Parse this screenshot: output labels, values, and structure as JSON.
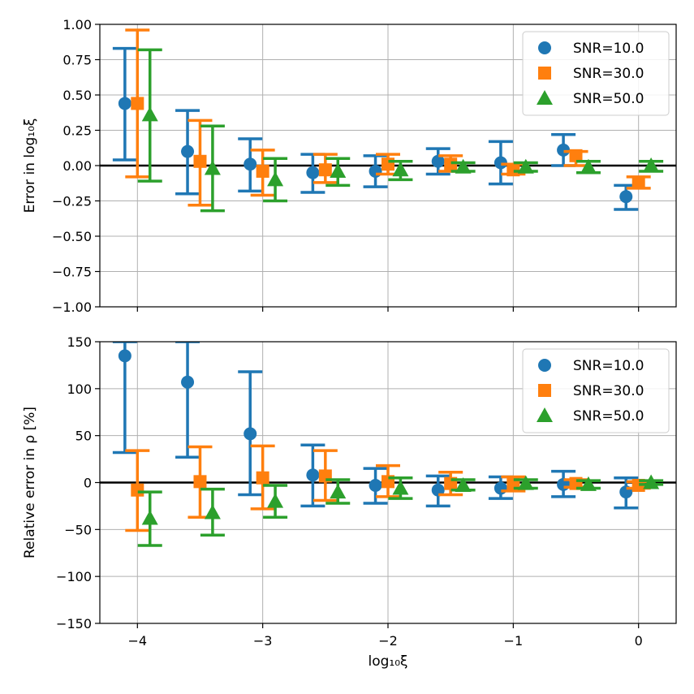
{
  "colors": {
    "SNR=10.0": "#1f77b4",
    "SNR=30.0": "#ff7f0e",
    "SNR=50.0": "#2ca02c",
    "grid": "#b0b0b0",
    "zero_line": "#000000"
  },
  "chart_data": [
    {
      "type": "scatter",
      "subtype": "errorbar",
      "title": "",
      "xlabel": "",
      "ylabel": "Error in log₁₀ξ",
      "xlim": [
        -4.3,
        0.3
      ],
      "ylim": [
        -1.0,
        1.0
      ],
      "x_ticks": [
        -4,
        -3,
        -2,
        -1,
        0
      ],
      "y_ticks": [
        -1.0,
        -0.75,
        -0.5,
        -0.25,
        0.0,
        0.25,
        0.5,
        0.75,
        1.0
      ],
      "y_tick_labels": [
        "−1.00",
        "−0.75",
        "−0.50",
        "−0.25",
        "0.00",
        "0.25",
        "0.50",
        "0.75",
        "1.00"
      ],
      "x_tick_labels_visible": false,
      "grid": true,
      "reference_line_y": 0,
      "legend": {
        "position": "top-right",
        "entries": [
          "SNR=10.0",
          "SNR=30.0",
          "SNR=50.0"
        ]
      },
      "series": [
        {
          "name": "SNR=10.0",
          "marker": "circle",
          "x": [
            -4.1,
            -3.6,
            -3.1,
            -2.6,
            -2.1,
            -1.6,
            -1.1,
            -0.6,
            -0.1
          ],
          "y": [
            0.44,
            0.1,
            0.01,
            -0.05,
            -0.04,
            0.03,
            0.02,
            0.11,
            -0.22
          ],
          "yerr_low": [
            0.04,
            -0.2,
            -0.18,
            -0.19,
            -0.15,
            -0.06,
            -0.13,
            0.0,
            -0.31
          ],
          "yerr_high": [
            0.83,
            0.39,
            0.19,
            0.08,
            0.07,
            0.12,
            0.17,
            0.22,
            -0.14
          ]
        },
        {
          "name": "SNR=30.0",
          "marker": "square",
          "x": [
            -4.0,
            -3.5,
            -3.0,
            -2.5,
            -2.0,
            -1.5,
            -1.0,
            -0.5,
            0.0
          ],
          "y": [
            0.44,
            0.03,
            -0.04,
            -0.03,
            0.01,
            0.01,
            -0.03,
            0.07,
            -0.12
          ],
          "yerr_low": [
            -0.08,
            -0.28,
            -0.21,
            -0.12,
            -0.06,
            -0.04,
            -0.06,
            0.0,
            -0.16
          ],
          "yerr_high": [
            0.96,
            0.32,
            0.11,
            0.08,
            0.08,
            0.07,
            0.01,
            0.1,
            -0.08
          ]
        },
        {
          "name": "SNR=50.0",
          "marker": "triangle",
          "x": [
            -3.9,
            -3.4,
            -2.9,
            -2.4,
            -1.9,
            -1.4,
            -0.9,
            -0.4,
            0.1
          ],
          "y": [
            0.36,
            -0.02,
            -0.1,
            -0.04,
            -0.03,
            -0.01,
            -0.01,
            -0.01,
            0.0
          ],
          "yerr_low": [
            -0.11,
            -0.32,
            -0.25,
            -0.14,
            -0.1,
            -0.04,
            -0.04,
            -0.05,
            -0.04
          ],
          "yerr_high": [
            0.82,
            0.28,
            0.05,
            0.05,
            0.03,
            0.02,
            0.02,
            0.03,
            0.03
          ]
        }
      ]
    },
    {
      "type": "scatter",
      "subtype": "errorbar",
      "title": "",
      "xlabel": "log₁₀ξ",
      "ylabel": "Relative error in ρ [%]",
      "xlim": [
        -4.3,
        0.3
      ],
      "ylim": [
        -150,
        150
      ],
      "x_ticks": [
        -4,
        -3,
        -2,
        -1,
        0
      ],
      "x_tick_labels": [
        "−4",
        "−3",
        "−2",
        "−1",
        "0"
      ],
      "y_ticks": [
        -150,
        -100,
        -50,
        0,
        50,
        100,
        150
      ],
      "y_tick_labels": [
        "−150",
        "−100",
        "−50",
        "0",
        "50",
        "100",
        "150"
      ],
      "grid": true,
      "reference_line_y": 0,
      "legend": {
        "position": "top-right",
        "entries": [
          "SNR=10.0",
          "SNR=30.0",
          "SNR=50.0"
        ]
      },
      "series": [
        {
          "name": "SNR=10.0",
          "marker": "circle",
          "x": [
            -4.1,
            -3.6,
            -3.1,
            -2.6,
            -2.1,
            -1.6,
            -1.1,
            -0.6,
            -0.1
          ],
          "y": [
            135,
            107,
            52,
            8,
            -3,
            -8,
            -6,
            -2,
            -10
          ],
          "yerr_low": [
            32,
            27,
            -13,
            -25,
            -22,
            -25,
            -17,
            -15,
            -27
          ],
          "yerr_high": [
            150,
            150,
            118,
            40,
            15,
            7,
            6,
            12,
            5
          ]
        },
        {
          "name": "SNR=30.0",
          "marker": "square",
          "x": [
            -4.0,
            -3.5,
            -3.0,
            -2.5,
            -2.0,
            -1.5,
            -1.0,
            -0.5,
            0.0
          ],
          "y": [
            -8,
            1,
            5,
            7,
            1,
            -1,
            -2,
            -1,
            -3
          ],
          "yerr_low": [
            -51,
            -37,
            -28,
            -19,
            -15,
            -13,
            -9,
            -5,
            -6
          ],
          "yerr_high": [
            34,
            38,
            39,
            34,
            18,
            11,
            6,
            3,
            1
          ]
        },
        {
          "name": "SNR=50.0",
          "marker": "triangle",
          "x": [
            -3.9,
            -3.4,
            -2.9,
            -2.4,
            -1.9,
            -1.4,
            -0.9,
            -0.4,
            0.1
          ],
          "y": [
            -38,
            -32,
            -20,
            -10,
            -6,
            -3,
            -1,
            -2,
            0
          ],
          "yerr_low": [
            -67,
            -56,
            -37,
            -22,
            -17,
            -8,
            -6,
            -6,
            -2
          ],
          "yerr_high": [
            -10,
            -7,
            -3,
            3,
            5,
            3,
            3,
            2,
            2
          ]
        }
      ]
    }
  ]
}
